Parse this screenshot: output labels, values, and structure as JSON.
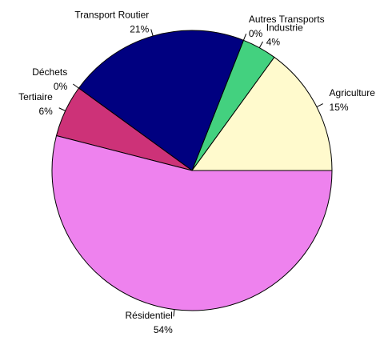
{
  "chart_data": {
    "type": "pie",
    "categories": [
      "Agriculture",
      "Industrie",
      "Autres Transports",
      "Transport Routier",
      "Déchets",
      "Tertiaire",
      "Résidentiel"
    ],
    "values": [
      15,
      4,
      0,
      21,
      0,
      6,
      54
    ],
    "value_labels": [
      "15%",
      "4%",
      "0%",
      "21%",
      "0%",
      "6%",
      "54%"
    ],
    "colors": [
      "#fffacd",
      "#43d17f",
      "#87ceeb",
      "#000080",
      "#a0522d",
      "#cd3278",
      "#ee82ee"
    ]
  }
}
